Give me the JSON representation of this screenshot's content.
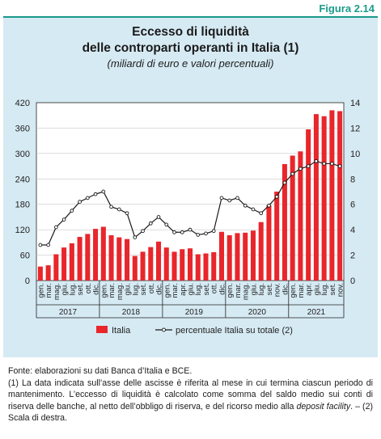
{
  "figure_label": "Figura 2.14",
  "title_line1": "Eccesso di liquidità",
  "title_line2": "delle controparti operanti in Italia (1)",
  "subtitle": "(miliardi di euro e valori percentuali)",
  "colors": {
    "bar": "#e8262b",
    "line": "#1a1a1a",
    "accent": "#1a9a8a",
    "panel": "#d6eaf3"
  },
  "chart_data": {
    "type": "bar",
    "categories": [
      "gen.",
      "mar.",
      "mag.",
      "giu.",
      "lug.",
      "set.",
      "ott.",
      "dic.",
      "gen.",
      "mar.",
      "mag.",
      "giu.",
      "lug.",
      "set.",
      "ott.",
      "dic.",
      "gen.",
      "mar.",
      "apr.",
      "giu.",
      "lug.",
      "set.",
      "ott.",
      "dic.",
      "gen.",
      "mar.",
      "mag.",
      "giu.",
      "lug.",
      "set.",
      "nov.",
      "dic.",
      "gen.",
      "mar.",
      "apr.",
      "giu.",
      "lug.",
      "set.",
      "nov."
    ],
    "year_labels": [
      "2017",
      "2018",
      "2019",
      "2020",
      "2021"
    ],
    "year_groups": [
      [
        0,
        7
      ],
      [
        8,
        15
      ],
      [
        16,
        23
      ],
      [
        24,
        31
      ],
      [
        32,
        38
      ]
    ],
    "left_axis": {
      "min": 0,
      "max": 420,
      "ticks": [
        0,
        60,
        120,
        180,
        240,
        300,
        360,
        420
      ]
    },
    "right_axis": {
      "min": 0,
      "max": 14,
      "ticks": [
        0,
        2,
        4,
        6,
        8,
        10,
        12,
        14
      ]
    },
    "series": [
      {
        "name": "Italia",
        "type": "bar",
        "axis": "left",
        "values": [
          33,
          36,
          62,
          78,
          88,
          103,
          110,
          122,
          127,
          107,
          102,
          98,
          58,
          68,
          79,
          92,
          78,
          68,
          74,
          76,
          62,
          64,
          67,
          115,
          107,
          112,
          113,
          118,
          138,
          178,
          210,
          275,
          295,
          305,
          357,
          393,
          388,
          402,
          400
        ]
      },
      {
        "name": "percentuale Italia su totale (2)",
        "type": "line",
        "axis": "right",
        "values": [
          2.8,
          2.8,
          4.2,
          4.8,
          5.5,
          6.2,
          6.5,
          6.8,
          7.0,
          5.8,
          5.6,
          5.3,
          3.4,
          3.9,
          4.5,
          5.0,
          4.4,
          3.8,
          3.8,
          4.0,
          3.6,
          3.7,
          3.9,
          6.5,
          6.3,
          6.5,
          5.9,
          5.6,
          5.3,
          5.9,
          6.6,
          7.7,
          8.4,
          8.8,
          9.0,
          9.4,
          9.2,
          9.2,
          9.0
        ]
      }
    ],
    "legend": [
      "Italia",
      "percentuale Italia su totale (2)"
    ],
    "legend_position": "bottom"
  },
  "notes": {
    "source": "Fonte: elaborazioni su dati Banca d’Italia e BCE.",
    "note1": "(1) La data indicata sull’asse delle ascisse è riferita al mese in cui termina ciascun periodo di mantenimento. L’eccesso di liquidità è calcolato come somma del saldo medio sui conti di riserva delle banche, al netto dell’obbligo di riserva, e del ricorso medio alla",
    "note1_italic": "deposit facility",
    "note1_end": ". – (2) Scala di destra."
  }
}
